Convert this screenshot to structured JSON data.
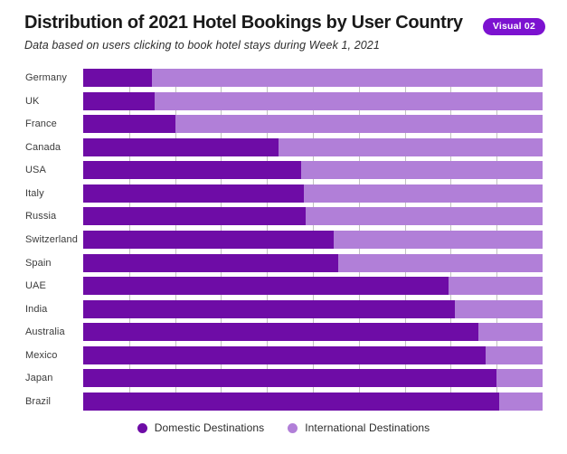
{
  "header": {
    "title": "Distribution of 2021 Hotel Bookings by User Country",
    "subtitle": "Data based on users clicking to book hotel stays during Week 1, 2021",
    "badge": "Visual 02"
  },
  "colors": {
    "domestic": "#6E0CA6",
    "international": "#B17FD8",
    "badge_bg": "#7C12D0",
    "gridline": "#C2C2C2"
  },
  "chart_data": {
    "type": "bar",
    "orientation": "horizontal",
    "stacked": true,
    "title": "Distribution of 2021 Hotel Bookings by User Country",
    "subtitle": "Data based on users clicking to book hotel stays during Week 1, 2021",
    "x_unit": "percent share of bookings",
    "xlim": [
      0,
      100
    ],
    "gridline_interval": 10,
    "grid": true,
    "legend_position": "bottom",
    "categories": [
      "Germany",
      "UK",
      "France",
      "Canada",
      "USA",
      "Italy",
      "Russia",
      "Switzerland",
      "Spain",
      "UAE",
      "India",
      "Australia",
      "Mexico",
      "Japan",
      "Brazil"
    ],
    "series": [
      {
        "name": "Domestic Destinations",
        "color": "#6E0CA6",
        "values": [
          15,
          15.5,
          20,
          42.5,
          47.5,
          48,
          48.5,
          54.5,
          55.5,
          79.5,
          81,
          86,
          87.5,
          90,
          90.5
        ]
      },
      {
        "name": "International Destinations",
        "color": "#B17FD8",
        "values": [
          85,
          84.5,
          80,
          57.5,
          52.5,
          52,
          51.5,
          45.5,
          44.5,
          20.5,
          19,
          14,
          12.5,
          10,
          9.5
        ]
      }
    ]
  }
}
